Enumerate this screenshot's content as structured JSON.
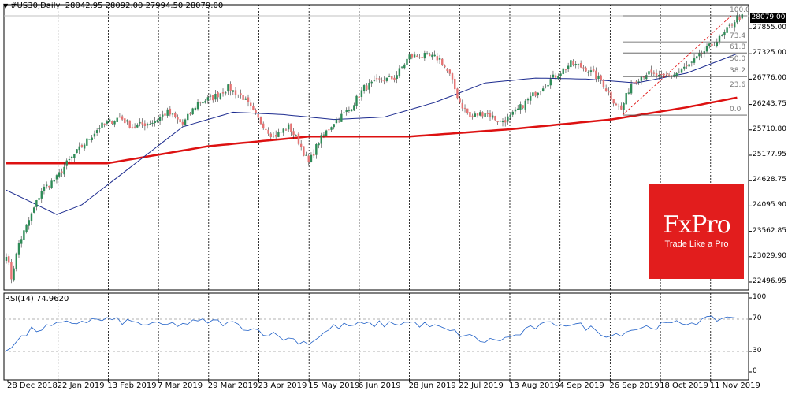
{
  "header": {
    "symbol": "#US30,Daily",
    "ohlc": "28042.95 28092.00 27994.50 28079.00"
  },
  "chart_data": {
    "type": "candlestick",
    "price_ticks": [
      "27855.00",
      "27325.00",
      "26776.00",
      "26243.75",
      "25710.80",
      "25177.95",
      "24628.75",
      "24095.90",
      "23562.85",
      "23029.90",
      "22496.95"
    ],
    "current_price": "28079.00",
    "x_labels": [
      "28 Dec 2018",
      "22 Jan 2019",
      "13 Feb 2019",
      "7 Mar 2019",
      "29 Mar 2019",
      "23 Apr 2019",
      "15 May 2019",
      "6 Jun 2019",
      "28 Jun 2019",
      "22 Jul 2019",
      "13 Aug 2019",
      "4 Sep 2019",
      "26 Sep 2019",
      "18 Oct 2019",
      "11 Nov 2019"
    ],
    "anchors": [
      [
        0,
        23200
      ],
      [
        2,
        22700
      ],
      [
        5,
        23400
      ],
      [
        10,
        24000
      ],
      [
        14,
        24500
      ],
      [
        20,
        24750
      ],
      [
        24,
        25050
      ],
      [
        30,
        25400
      ],
      [
        37,
        25800
      ],
      [
        45,
        26000
      ],
      [
        50,
        25800
      ],
      [
        58,
        25900
      ],
      [
        64,
        26100
      ],
      [
        70,
        25850
      ],
      [
        76,
        26300
      ],
      [
        82,
        26400
      ],
      [
        88,
        26600
      ],
      [
        94,
        26400
      ],
      [
        100,
        25950
      ],
      [
        106,
        25600
      ],
      [
        112,
        25800
      ],
      [
        116,
        25500
      ],
      [
        120,
        25050
      ],
      [
        124,
        25500
      ],
      [
        130,
        25900
      ],
      [
        136,
        26150
      ],
      [
        142,
        26600
      ],
      [
        148,
        26750
      ],
      [
        154,
        26800
      ],
      [
        160,
        27250
      ],
      [
        166,
        27250
      ],
      [
        172,
        27200
      ],
      [
        176,
        26850
      ],
      [
        180,
        26300
      ],
      [
        184,
        26000
      ],
      [
        190,
        26100
      ],
      [
        196,
        25900
      ],
      [
        200,
        26000
      ],
      [
        206,
        26300
      ],
      [
        212,
        26600
      ],
      [
        218,
        26850
      ],
      [
        224,
        27100
      ],
      [
        230,
        27000
      ],
      [
        236,
        26750
      ],
      [
        240,
        26400
      ],
      [
        244,
        26150
      ],
      [
        248,
        26700
      ],
      [
        254,
        26900
      ],
      [
        260,
        26800
      ],
      [
        266,
        26900
      ],
      [
        272,
        27100
      ],
      [
        278,
        27400
      ],
      [
        284,
        27650
      ],
      [
        290,
        28050
      ]
    ],
    "ma_blue": [
      [
        0,
        24500
      ],
      [
        20,
        24000
      ],
      [
        30,
        24200
      ],
      [
        50,
        25000
      ],
      [
        70,
        25800
      ],
      [
        90,
        26100
      ],
      [
        110,
        26050
      ],
      [
        130,
        25950
      ],
      [
        150,
        26000
      ],
      [
        170,
        26300
      ],
      [
        190,
        26700
      ],
      [
        210,
        26800
      ],
      [
        230,
        26780
      ],
      [
        250,
        26700
      ],
      [
        270,
        26900
      ],
      [
        290,
        27300
      ]
    ],
    "ma_red": [
      [
        0,
        25050
      ],
      [
        40,
        25050
      ],
      [
        80,
        25400
      ],
      [
        120,
        25600
      ],
      [
        160,
        25600
      ],
      [
        200,
        25750
      ],
      [
        240,
        25950
      ],
      [
        270,
        26200
      ],
      [
        290,
        26400
      ]
    ],
    "fibonacci": {
      "levels": [
        "100.0",
        "73.4",
        "61.8",
        "50.0",
        "38.2",
        "23.6",
        "0.0"
      ],
      "values": [
        28079,
        27543,
        27316,
        27070,
        26830,
        26535,
        26040
      ]
    },
    "rsi": {
      "label": "RSI(14) 74.9620",
      "ticks": [
        "100",
        "70",
        "30",
        "0"
      ],
      "levels": [
        30,
        70
      ],
      "points": [
        [
          0,
          30
        ],
        [
          10,
          55
        ],
        [
          20,
          62
        ],
        [
          30,
          68
        ],
        [
          40,
          70
        ],
        [
          50,
          66
        ],
        [
          60,
          62
        ],
        [
          70,
          64
        ],
        [
          80,
          68
        ],
        [
          90,
          64
        ],
        [
          100,
          55
        ],
        [
          110,
          45
        ],
        [
          120,
          38
        ],
        [
          130,
          60
        ],
        [
          140,
          63
        ],
        [
          150,
          64
        ],
        [
          160,
          66
        ],
        [
          170,
          60
        ],
        [
          180,
          50
        ],
        [
          190,
          40
        ],
        [
          200,
          45
        ],
        [
          210,
          60
        ],
        [
          220,
          66
        ],
        [
          230,
          60
        ],
        [
          240,
          48
        ],
        [
          250,
          58
        ],
        [
          260,
          62
        ],
        [
          270,
          66
        ],
        [
          280,
          70
        ],
        [
          290,
          75
        ]
      ]
    }
  },
  "logo": {
    "brand": "FxPro",
    "tagline": "Trade Like a Pro"
  }
}
